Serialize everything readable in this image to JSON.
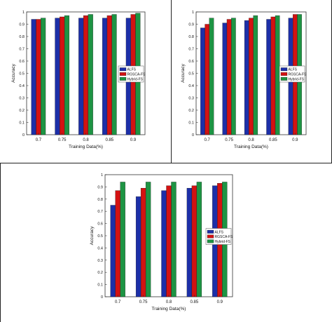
{
  "colors": {
    "alfs": "#1c2fa8",
    "rgsca": "#d31212",
    "hybrid": "#1d9443",
    "axis": "#333333",
    "frame": "#222222"
  },
  "chart_data": [
    {
      "type": "bar",
      "categories": [
        "0.7",
        "0.75",
        "0.8",
        "0.85",
        "0.9"
      ],
      "series": [
        {
          "name": "ALFS",
          "values": [
            0.94,
            0.95,
            0.95,
            0.95,
            0.95
          ]
        },
        {
          "name": "RGSCA-FS",
          "values": [
            0.94,
            0.96,
            0.97,
            0.97,
            0.98
          ]
        },
        {
          "name": "Hybrid-FS",
          "values": [
            0.95,
            0.97,
            0.98,
            0.98,
            0.99
          ]
        }
      ],
      "xlabel": "Training Data(%)",
      "ylabel": "Accuracy",
      "ylim": [
        0,
        1
      ],
      "yticks": [
        "0",
        "0.1",
        "0.2",
        "0.3",
        "0.4",
        "0.5",
        "0.6",
        "0.7",
        "0.8",
        "0.9",
        "1"
      ],
      "legend": "right",
      "grid": false
    },
    {
      "type": "bar",
      "categories": [
        "0.7",
        "0.75",
        "0.8",
        "0.85",
        "0.9"
      ],
      "series": [
        {
          "name": "ALFS",
          "values": [
            0.87,
            0.91,
            0.93,
            0.94,
            0.95
          ]
        },
        {
          "name": "RGSCA-FS",
          "values": [
            0.9,
            0.94,
            0.95,
            0.96,
            0.98
          ]
        },
        {
          "name": "Hybrid-FS",
          "values": [
            0.95,
            0.95,
            0.97,
            0.97,
            0.98
          ]
        }
      ],
      "xlabel": "Training Data(%)",
      "ylabel": "Accuracy",
      "ylim": [
        0,
        1
      ],
      "yticks": [
        "0",
        "0.1",
        "0.2",
        "0.3",
        "0.4",
        "0.5",
        "0.6",
        "0.7",
        "0.8",
        "0.9",
        "1"
      ],
      "legend": "right",
      "grid": false
    },
    {
      "type": "bar",
      "categories": [
        "0.7",
        "0.75",
        "0.8",
        "0.85",
        "0.9"
      ],
      "series": [
        {
          "name": "ALFS",
          "values": [
            0.75,
            0.82,
            0.87,
            0.89,
            0.91
          ]
        },
        {
          "name": "RGSCA-FS",
          "values": [
            0.87,
            0.89,
            0.91,
            0.91,
            0.93
          ]
        },
        {
          "name": "Hybrid-FS",
          "values": [
            0.94,
            0.94,
            0.94,
            0.94,
            0.94
          ]
        }
      ],
      "xlabel": "Training Data(%)",
      "ylabel": "Accuracy",
      "ylim": [
        0,
        1
      ],
      "yticks": [
        "0",
        "0.1",
        "0.2",
        "0.3",
        "0.4",
        "0.5",
        "0.6",
        "0.7",
        "0.8",
        "0.9",
        "1"
      ],
      "legend": "right",
      "grid": false
    }
  ]
}
